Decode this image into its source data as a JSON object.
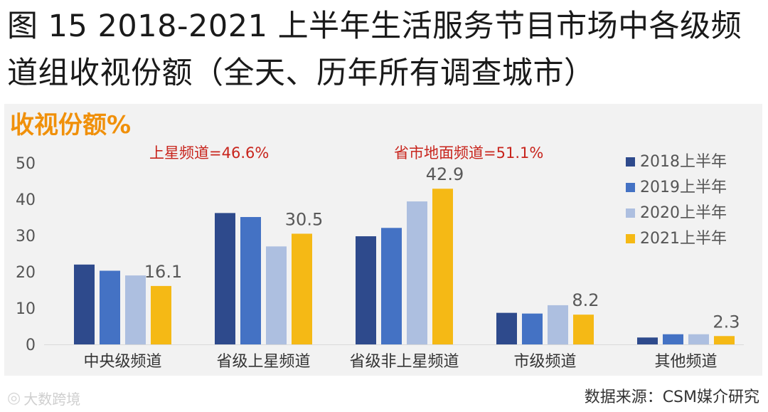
{
  "figure": {
    "title_line1": "图 15 2018-2021 上半年生活服务节目市场中各级频",
    "title_line2": "道组收视份额（全天、历年所有调查城市）"
  },
  "colors": {
    "panel_bg": "#f2f2f2",
    "accent_orange": "#f0900a",
    "annotation_red": "#c8251d",
    "axis_text": "#555555",
    "value_text": "#595959",
    "series": [
      "#2e4a8c",
      "#4472c4",
      "#adbfe0",
      "#f5b915"
    ]
  },
  "chart_data": {
    "type": "bar",
    "title": "收视份额%",
    "xlabel": "",
    "ylabel": "收视份额%",
    "ylim": [
      0,
      50
    ],
    "yticks": [
      0,
      10,
      20,
      30,
      40,
      50
    ],
    "grid": false,
    "legend_position": "top-right",
    "categories": [
      "中央级频道",
      "省级上星频道",
      "省级非上星频道",
      "市级频道",
      "其他频道"
    ],
    "series": [
      {
        "name": "2018上半年",
        "values": [
          22.0,
          36.2,
          29.8,
          8.7,
          1.9
        ]
      },
      {
        "name": "2019上半年",
        "values": [
          20.3,
          35.1,
          32.1,
          8.5,
          2.8
        ]
      },
      {
        "name": "2020上半年",
        "values": [
          19.0,
          27.0,
          39.4,
          10.8,
          2.8
        ]
      },
      {
        "name": "2021上半年",
        "values": [
          16.1,
          30.5,
          42.9,
          8.2,
          2.3
        ]
      }
    ],
    "data_labels": [
      {
        "series": 3,
        "category": 0,
        "text": "16.1"
      },
      {
        "series": 3,
        "category": 1,
        "text": "30.5"
      },
      {
        "series": 3,
        "category": 2,
        "text": "42.9"
      },
      {
        "series": 3,
        "category": 3,
        "text": "8.2"
      },
      {
        "series": 3,
        "category": 4,
        "text": "2.3"
      }
    ],
    "annotations": [
      "上星频道=46.6%",
      "省市地面频道=51.1%"
    ]
  },
  "footer": {
    "logo_text": "大数跨境",
    "source": "数据来源：CSM媒介研究"
  }
}
